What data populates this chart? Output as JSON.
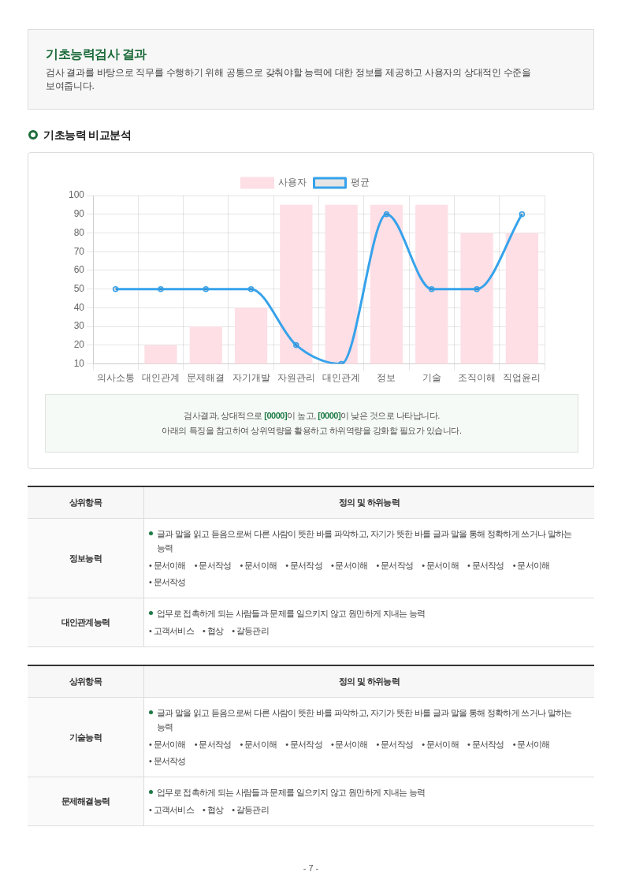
{
  "chart_data": [
    {
      "type": "other",
      "title": "기초능력검사 결과",
      "subtitle": "검사 결과를 바탕으로 직무를 수행하기 위해 공통으로 갖춰야할 능력에 대한 정보를 제공하고 사용자의 상대적인 수준을 보여줍니다."
    },
    {
      "type": "bar",
      "title": "기초능력 비교분석",
      "categories": [
        "의사소통",
        "대인관계",
        "문제해결",
        "자기개발",
        "자원관리",
        "대인관계",
        "정보",
        "기술",
        "조직이해",
        "직업윤리"
      ],
      "series": [
        {
          "name": "사용자",
          "type": "bar",
          "color": "#fddfe5",
          "values": [
            null,
            20,
            30,
            40,
            95,
            95,
            95,
            95,
            80,
            80
          ]
        },
        {
          "name": "평균",
          "type": "line",
          "color": "#36a2eb",
          "values": [
            50,
            50,
            50,
            50,
            20,
            10,
            90,
            50,
            50,
            90
          ]
        }
      ],
      "ylim": [
        10,
        100
      ],
      "yticks": [
        10,
        20,
        30,
        40,
        50,
        60,
        70,
        80,
        90,
        100
      ],
      "grid": true,
      "legend": "top",
      "marker": "circle",
      "annotations": [
        "검사결과, 상대적으로 [0000]이 높고, [0000]이 낮은 것으로 나타납니다.",
        "아래의 특징을 참고하여 상위역량을 활용하고 하위역량을 강화할 필요가 있습니다."
      ]
    },
    {
      "type": "other",
      "categories": [
        "상위항목",
        "정의 및 하위능력"
      ],
      "y_categories": [
        "정보능력",
        "대인관계능력"
      ],
      "annotations": [
        "글과 말을 읽고 듣음으로써 다른 사람이 뜻한 바를 파악하고, 자기가 뜻한 바를 글과 말을 통해 정확하게 쓰거나 말하는 능력",
        "• 문서이해 • 문서작성 • 문서이해 • 문서작성 • 문서이해 • 문서작성 • 문서이해 • 문서작성 • 문서이해 • 문서작성",
        "업무로 접촉하게 되는 사람들과 문제를 일으키지 않고 원만하게 지내는 능력",
        "• 고객서비스 • 협상 • 갈등관리"
      ]
    },
    {
      "type": "other",
      "categories": [
        "상위항목",
        "정의 및 하위능력"
      ],
      "y_categories": [
        "기술능력",
        "문제해결능력"
      ],
      "annotations": [
        "글과 말을 읽고 듣음으로써 다른 사람이 뜻한 바를 파악하고, 자기가 뜻한 바를 글과 말을 통해 정확하게 쓰거나 말하는 능력",
        "• 문서이해 • 문서작성 • 문서이해 • 문서작성 • 문서이해 • 문서작성 • 문서이해 • 문서작성 • 문서이해 • 문서작성",
        "업무로 접촉하게 되는 사람들과 문제를 일으키지 않고 원만하게 지내는 능력",
        "• 고객서비스 • 협상 • 갈등관리"
      ]
    },
    {
      "type": "other",
      "annotations": [
        "- 7 -"
      ]
    }
  ]
}
